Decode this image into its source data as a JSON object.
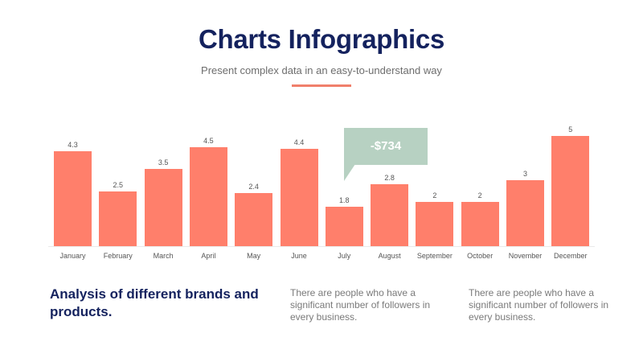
{
  "header": {
    "title": "Charts Infographics",
    "subtitle": "Present complex data in an easy-to-understand way"
  },
  "colors": {
    "title": "#14225e",
    "bar": "#ff7f6b",
    "accent_line": "#f07f6b",
    "callout": "#b7d1c2"
  },
  "callout": {
    "text": "-$734"
  },
  "chart_data": {
    "type": "bar",
    "title": "",
    "xlabel": "",
    "ylabel": "",
    "categories": [
      "January",
      "February",
      "March",
      "April",
      "May",
      "June",
      "July",
      "August",
      "September",
      "October",
      "November",
      "December"
    ],
    "values": [
      4.3,
      2.5,
      3.5,
      4.5,
      2.4,
      4.4,
      1.8,
      2.8,
      2,
      2,
      3,
      5
    ],
    "value_labels": [
      "4.3",
      "2.5",
      "3.5",
      "4.5",
      "2.4",
      "4.4",
      "1.8",
      "2.8",
      "2",
      "2",
      "3",
      "5"
    ],
    "ylim": [
      0,
      5
    ],
    "grid": false,
    "legend": "none",
    "annotations": [
      {
        "text": "-$734",
        "near": "July"
      }
    ]
  },
  "footer": {
    "heading": "Analysis of different brands and products.",
    "descriptions": [
      "There are people who have a significant number of followers in every business.",
      "There are people who have a significant number of followers in every business."
    ]
  }
}
